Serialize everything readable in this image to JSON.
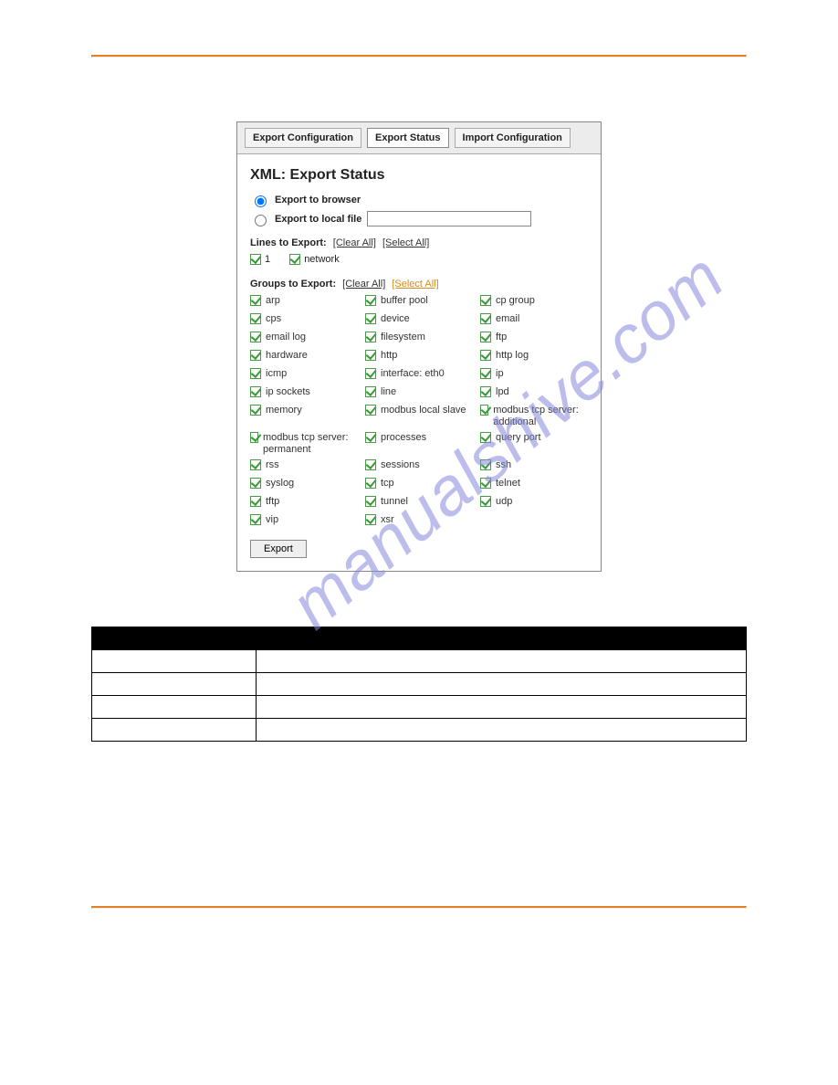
{
  "watermark": "manualshive.com",
  "tabs": {
    "export_config": "Export Configuration",
    "export_status": "Export Status",
    "import_config": "Import Configuration"
  },
  "panel": {
    "title": "XML: Export Status",
    "radio": {
      "browser": "Export to browser",
      "local": "Export to local file",
      "filename": ""
    },
    "lines_label": "Lines to Export:",
    "groups_label": "Groups to Export:",
    "clear_all": "[Clear All]",
    "select_all": "[Select All]",
    "lines": [
      {
        "label": "1"
      },
      {
        "label": "network"
      }
    ],
    "groups": [
      {
        "label": "arp"
      },
      {
        "label": "buffer pool"
      },
      {
        "label": "cp group"
      },
      {
        "label": "cps"
      },
      {
        "label": "device"
      },
      {
        "label": "email"
      },
      {
        "label": "email log"
      },
      {
        "label": "filesystem"
      },
      {
        "label": "ftp"
      },
      {
        "label": "hardware"
      },
      {
        "label": "http"
      },
      {
        "label": "http log"
      },
      {
        "label": "icmp"
      },
      {
        "label": "interface: eth0"
      },
      {
        "label": "ip"
      },
      {
        "label": "ip sockets"
      },
      {
        "label": "line"
      },
      {
        "label": "lpd"
      },
      {
        "label": "memory"
      },
      {
        "label": "modbus local slave"
      },
      {
        "label": "modbus tcp server: additional"
      },
      {
        "label": "modbus tcp server: permanent"
      },
      {
        "label": "processes"
      },
      {
        "label": "query port"
      },
      {
        "label": "rss"
      },
      {
        "label": "sessions"
      },
      {
        "label": "ssh"
      },
      {
        "label": "syslog"
      },
      {
        "label": "tcp"
      },
      {
        "label": "telnet"
      },
      {
        "label": "tftp"
      },
      {
        "label": "tunnel"
      },
      {
        "label": "udp"
      },
      {
        "label": "vip"
      },
      {
        "label": "xsr"
      }
    ],
    "export_btn": "Export"
  },
  "table": {
    "headers": [
      "",
      ""
    ],
    "rows": [
      [
        "",
        ""
      ],
      [
        "",
        ""
      ],
      [
        "",
        ""
      ],
      [
        "",
        ""
      ]
    ]
  }
}
